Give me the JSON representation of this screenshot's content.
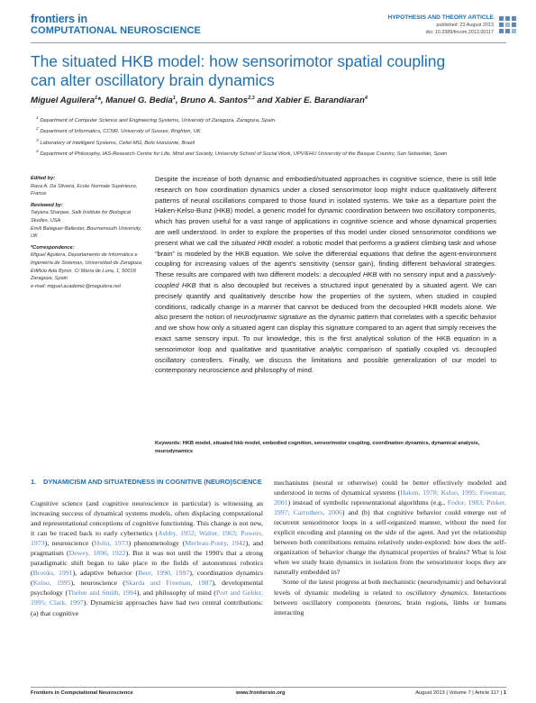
{
  "header": {
    "brand_top": "frontiers in",
    "brand_bottom": "COMPUTATIONAL NEUROSCIENCE",
    "article_type": "HYPOTHESIS AND THEORY ARTICLE",
    "published": "published: 23 August 2013",
    "doi": "doi: 10.3389/fncom.2013.00117",
    "logo_icon": "frontiers-cube-logo-icon"
  },
  "title": "The situated HKB model: how sensorimotor spatial coupling can alter oscillatory brain dynamics",
  "authors": [
    {
      "name": "Miguel Aguilera",
      "sup": "1",
      "extra": "*",
      "sep": ", "
    },
    {
      "name": "Manuel G. Bedia",
      "sup": "1",
      "extra": "",
      "sep": ", "
    },
    {
      "name": "Bruno A. Santos",
      "sup": "2,3",
      "extra": "",
      "sep": " and "
    },
    {
      "name": "Xabier E. Barandiaran",
      "sup": "4",
      "extra": "",
      "sep": ""
    }
  ],
  "affiliations": [
    {
      "num": "1",
      "text": "Department of Computer Science and Engineering Systems, University of Zaragoza, Zaragoza, Spain."
    },
    {
      "num": "2",
      "text": "Department of Informatics, CCNR, University of Sussex, Brighton, UK"
    },
    {
      "num": "3",
      "text": "Laboratory of Intelligent Systems, Cefet-MG, Belo Horizonte, Brazil"
    },
    {
      "num": "4",
      "text": "Department of Philosophy, IAS-Research Centre for Life, Mind and Society, University School of Social Work, UPV/EHU University of the Basque Country, San Sebastián, Spain"
    }
  ],
  "sidebar": {
    "edited_by_label": "Edited by:",
    "edited_by": "Rava A. Da Silveira, Ecole Normale Supérieure, France",
    "reviewed_by_label": "Reviewed by:",
    "reviewer1": "Tatyana Sharpee, Salk Institute for Biological Studies, USA",
    "reviewer2": "Emili Balaguer-Ballester, Bournemouth University, UK",
    "correspondence_label": "*Correspondence:",
    "correspondence": "Miguel Aguilera, Departamento de Informática e Ingeniería de Sistemas, Universidad de Zaragoza, Edificio Ada Byron, C/ María de Luna, 1, 50018 Zaragoza, Spain",
    "email_label": "e-mail: ",
    "email": "miguel.academic@maguilera.net"
  },
  "abstract": {
    "p1": "Despite the increase of both dynamic and embodied/situated approaches in cognitive science, there is still little research on how coordination dynamics under a closed sensorimotor loop might induce qualitatively different patterns of neural oscillations compared to those found in isolated systems. We take as a departure point the Haken-Kelso-Bunz (HKB) model, a generic model for dynamic coordination between two oscillatory components, which has proven useful for a vast range of applications in cognitive science and whose dynamical properties are well understood. In order to explore the properties of this model under closed sensorimotor conditions we present what we call the ",
    "em1": "situated HKB model",
    "p2": ": a robotic model that performs a gradient climbing task and whose “brain” is modeled by the HKB equation. We solve the differential equations that define the agent-environment coupling for increasing values of the agent's sensitivity (sensor gain), finding different behavioral strategies. These results are compared with two different models: a ",
    "em2": "decoupled HKB",
    "p3": " with no sensory input and a ",
    "em3": "passively-coupled HKB",
    "p4": " that is also decoupled but receives a structured input generated by a situated agent. We can precisely quantify and qualitatively describe how the properties of the system, when studied in coupled conditions, radically change in a manner that cannot be deduced from the decoupled HKB models alone. We also present the notion of ",
    "em4": "neurodynamic signature",
    "p5": " as the dynamic pattern that correlates with a specific behavior and we show how only a situated agent can display this signature compared to an agent that simply receives the exact same sensory input. To our knowledge, this is the first analytical solution of the HKB equation in a sensorimotor loop and qualitative and quantitative analytic comparison of spatially coupled vs. decoupled oscillatory controllers. Finally, we discuss the limitations and possible generalization of our model to contemporary neuroscience and philosophy of mind."
  },
  "keywords_label": "Keywords:",
  "keywords": "HKB model, situated hkb model, embodied cognition, sensorimotor coupling, coordination dynamics, dynamical analysis, neurodynamics",
  "section": {
    "num": "1.",
    "title": "DYNAMICISM AND SITUATEDNESS IN COGNITIVE (NEURO)SCIENCE"
  },
  "footer": {
    "journal": "Frontiers in Computational Neuroscience",
    "url": "www.frontiersin.org",
    "issue": "August 2013 | Volume 7 | Article 117 | ",
    "page": "1"
  }
}
